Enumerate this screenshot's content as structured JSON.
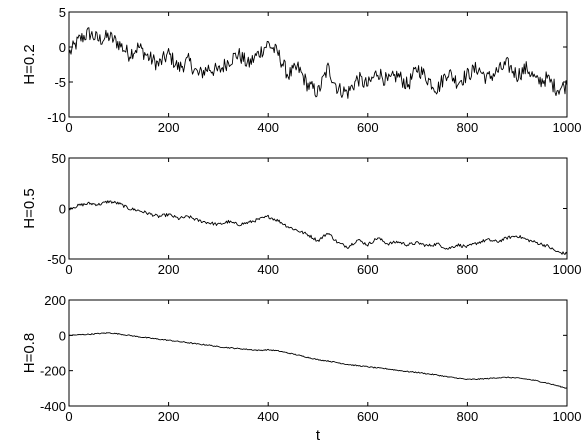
{
  "chart_data": [
    {
      "type": "line",
      "ylabel": "H=0.2",
      "xlabel": "",
      "xlim": [
        0,
        1000
      ],
      "ylim": [
        -10,
        5
      ],
      "xticks": [
        0,
        200,
        400,
        600,
        800,
        1000
      ],
      "yticks": [
        5,
        0,
        -5,
        -10
      ],
      "grid": false,
      "series": [
        {
          "x": [
            0,
            20,
            40,
            60,
            80,
            100,
            120,
            140,
            160,
            180,
            200,
            220,
            240,
            260,
            280,
            300,
            320,
            340,
            360,
            380,
            400,
            420,
            440,
            460,
            480,
            500,
            520,
            540,
            560,
            580,
            600,
            620,
            640,
            660,
            680,
            700,
            720,
            740,
            760,
            780,
            800,
            820,
            840,
            860,
            880,
            900,
            920,
            940,
            960,
            980,
            1000
          ],
          "values": [
            -1,
            1,
            2,
            1,
            1.5,
            0.5,
            -1,
            0,
            -1.5,
            -2.5,
            -1,
            -3,
            -2,
            -4,
            -3,
            -3.5,
            -2,
            -1,
            -2.5,
            -1,
            0.5,
            -1,
            -4,
            -3,
            -5.5,
            -6.5,
            -3,
            -6,
            -6.5,
            -4.5,
            -5.5,
            -3.5,
            -5,
            -4,
            -5.5,
            -3,
            -4.5,
            -6,
            -3.5,
            -5,
            -4,
            -3,
            -4.5,
            -3.5,
            -2.5,
            -4,
            -3,
            -5,
            -4.5,
            -6,
            -5.5
          ]
        }
      ]
    },
    {
      "type": "line",
      "ylabel": "H=0.5",
      "xlabel": "",
      "xlim": [
        0,
        1000
      ],
      "ylim": [
        -50,
        50
      ],
      "xticks": [
        0,
        200,
        400,
        600,
        800,
        1000
      ],
      "yticks": [
        50,
        0,
        -50
      ],
      "grid": false,
      "series": [
        {
          "x": [
            0,
            20,
            40,
            60,
            80,
            100,
            120,
            140,
            160,
            180,
            200,
            220,
            240,
            260,
            280,
            300,
            320,
            340,
            360,
            380,
            400,
            420,
            440,
            460,
            480,
            500,
            520,
            540,
            560,
            580,
            600,
            620,
            640,
            660,
            680,
            700,
            720,
            740,
            760,
            780,
            800,
            820,
            840,
            860,
            880,
            900,
            920,
            940,
            960,
            980,
            1000
          ],
          "values": [
            0,
            3,
            5,
            4,
            7,
            5,
            0,
            -2,
            -5,
            -8,
            -6,
            -10,
            -8,
            -12,
            -14,
            -16,
            -13,
            -16,
            -14,
            -11,
            -8,
            -12,
            -18,
            -22,
            -26,
            -32,
            -24,
            -34,
            -38,
            -31,
            -36,
            -29,
            -35,
            -33,
            -36,
            -34,
            -37,
            -35,
            -40,
            -36,
            -38,
            -34,
            -31,
            -33,
            -29,
            -27,
            -31,
            -34,
            -37,
            -43,
            -45
          ]
        }
      ]
    },
    {
      "type": "line",
      "ylabel": "H=0.8",
      "xlabel": "t",
      "xlim": [
        0,
        1000
      ],
      "ylim": [
        -400,
        200
      ],
      "xticks": [
        0,
        200,
        400,
        600,
        800,
        1000
      ],
      "yticks": [
        200,
        0,
        -200,
        -400
      ],
      "grid": false,
      "series": [
        {
          "x": [
            0,
            20,
            40,
            60,
            80,
            100,
            120,
            140,
            160,
            180,
            200,
            220,
            240,
            260,
            280,
            300,
            320,
            340,
            360,
            380,
            400,
            420,
            440,
            460,
            480,
            500,
            520,
            540,
            560,
            580,
            600,
            620,
            640,
            660,
            680,
            700,
            720,
            740,
            760,
            780,
            800,
            820,
            840,
            860,
            880,
            900,
            920,
            940,
            960,
            980,
            1000
          ],
          "values": [
            0,
            3,
            6,
            10,
            14,
            8,
            0,
            -8,
            -15,
            -22,
            -28,
            -35,
            -42,
            -50,
            -55,
            -65,
            -70,
            -75,
            -80,
            -85,
            -82,
            -88,
            -100,
            -112,
            -125,
            -138,
            -145,
            -155,
            -165,
            -172,
            -178,
            -185,
            -190,
            -198,
            -205,
            -210,
            -218,
            -225,
            -235,
            -242,
            -250,
            -248,
            -245,
            -240,
            -238,
            -242,
            -248,
            -258,
            -270,
            -285,
            -300
          ]
        }
      ]
    }
  ]
}
